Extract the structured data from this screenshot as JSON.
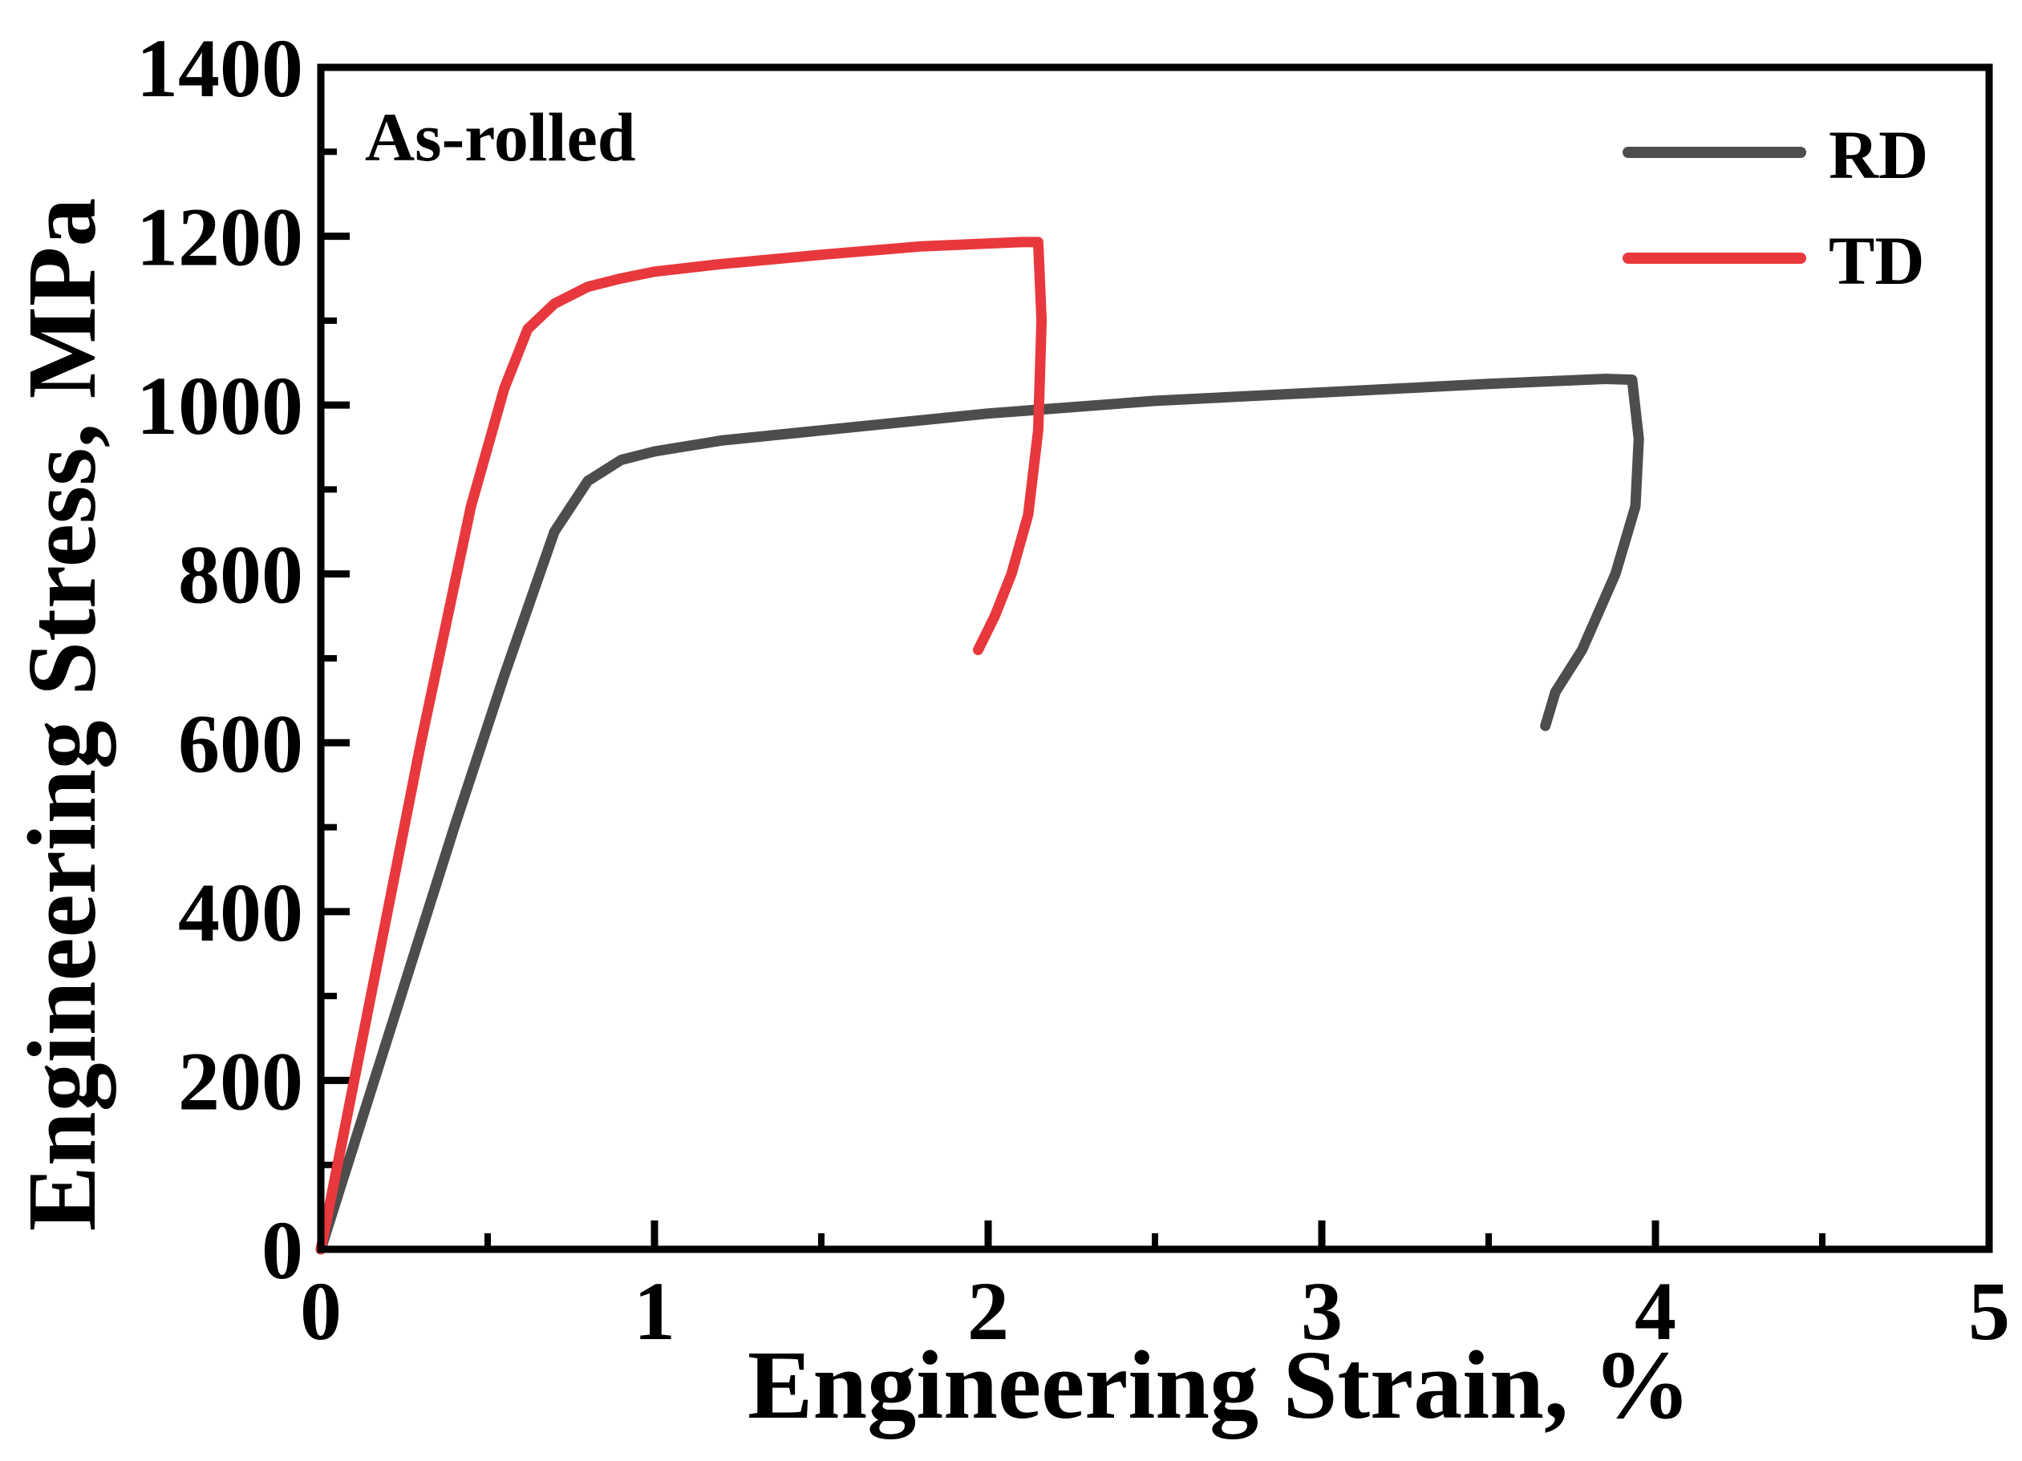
{
  "chart_data": {
    "type": "line",
    "title": "",
    "annotation": "As-rolled",
    "xlabel": "Engineering Strain, %",
    "ylabel": "Engineering Stress, MPa",
    "xlim": [
      0,
      5
    ],
    "ylim": [
      0,
      1400
    ],
    "xticks": [
      0,
      1,
      2,
      3,
      4,
      5
    ],
    "xtick_labels": [
      "0",
      "1",
      "2",
      "3",
      "4",
      "5"
    ],
    "yticks": [
      0,
      200,
      400,
      600,
      800,
      1000,
      1200,
      1400
    ],
    "ytick_labels": [
      "0",
      "200",
      "400",
      "600",
      "800",
      "1000",
      "1200",
      "1400"
    ],
    "grid": false,
    "legend_position": "top-right",
    "series": [
      {
        "name": "RD",
        "color": "#4d4d4d",
        "x": [
          0,
          0.2,
          0.4,
          0.55,
          0.7,
          0.8,
          0.9,
          1.0,
          1.2,
          1.5,
          2.0,
          2.5,
          3.0,
          3.5,
          3.85,
          3.93,
          3.95,
          3.94,
          3.88,
          3.78,
          3.7,
          3.67
        ],
        "y": [
          0,
          250,
          500,
          680,
          850,
          910,
          935,
          945,
          958,
          970,
          990,
          1005,
          1015,
          1025,
          1031,
          1030,
          960,
          880,
          800,
          710,
          660,
          620
        ]
      },
      {
        "name": "TD",
        "color": "#e8383d",
        "x": [
          0,
          0.15,
          0.3,
          0.45,
          0.55,
          0.62,
          0.7,
          0.8,
          0.9,
          1.0,
          1.2,
          1.5,
          1.8,
          2.1,
          2.15,
          2.16,
          2.15,
          2.12,
          2.07,
          2.02,
          1.97
        ],
        "y": [
          0,
          300,
          600,
          880,
          1020,
          1090,
          1120,
          1140,
          1150,
          1158,
          1167,
          1178,
          1188,
          1193,
          1193,
          1100,
          970,
          870,
          800,
          750,
          710
        ]
      }
    ]
  }
}
